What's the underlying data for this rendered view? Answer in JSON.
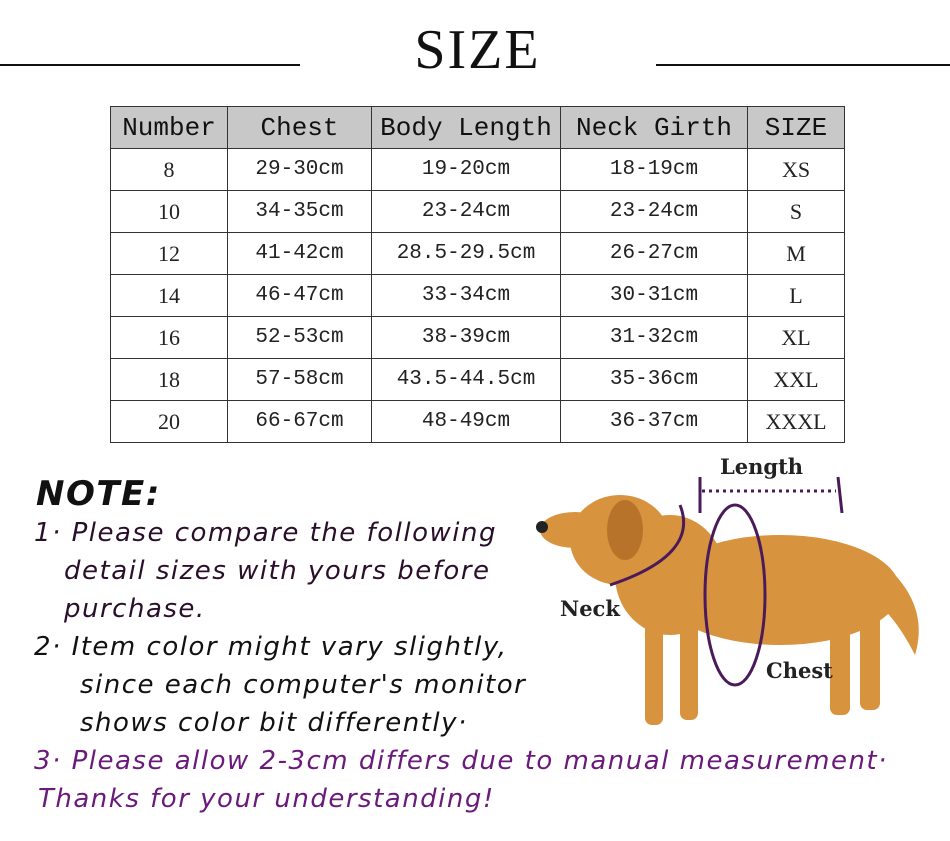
{
  "title": "SIZE",
  "table": {
    "headers": [
      "Number",
      "Chest",
      "Body Length",
      "Neck Girth",
      "SIZE"
    ],
    "rows": [
      [
        "8",
        "29-30cm",
        "19-20cm",
        "18-19cm",
        "XS"
      ],
      [
        "10",
        "34-35cm",
        "23-24cm",
        "23-24cm",
        "S"
      ],
      [
        "12",
        "41-42cm",
        "28.5-29.5cm",
        "26-27cm",
        "M"
      ],
      [
        "14",
        "46-47cm",
        "33-34cm",
        "30-31cm",
        "L"
      ],
      [
        "16",
        "52-53cm",
        "38-39cm",
        "31-32cm",
        "XL"
      ],
      [
        "18",
        "57-58cm",
        "43.5-44.5cm",
        "35-36cm",
        "XXL"
      ],
      [
        "20",
        "66-67cm",
        "48-49cm",
        "36-37cm",
        "XXXL"
      ]
    ]
  },
  "note": {
    "heading": "NOTE:",
    "lines": [
      "1· Please compare the following",
      "detail sizes with yours before",
      "purchase.",
      "2· Item color might vary slightly,",
      "since each computer's monitor",
      "shows color bit differently·",
      "3· Please allow 2-3cm differs due to manual measurement·",
      "Thanks for your understanding!"
    ]
  },
  "diagram": {
    "length": "Length",
    "neck": "Neck",
    "chest": "Chest"
  },
  "colors": {
    "header_bg": "#c8c8c8",
    "note_purple": "#6a1a7a",
    "dog": "#d8933e",
    "measure_line": "#4a1a5a"
  }
}
